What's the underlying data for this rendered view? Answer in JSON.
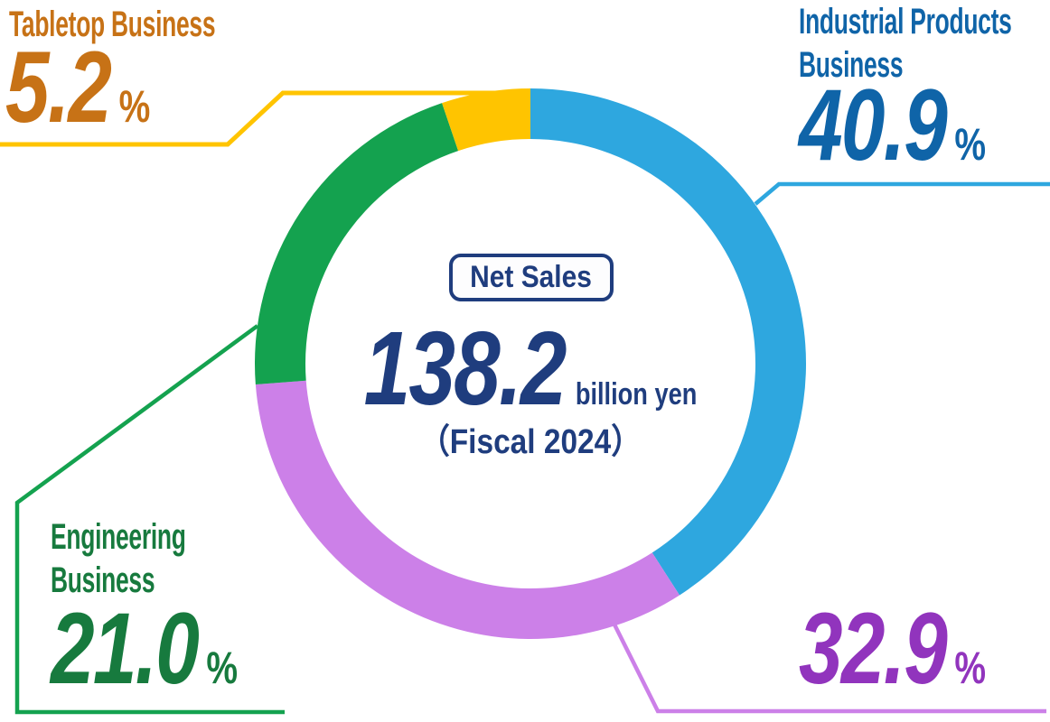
{
  "chart_data": {
    "type": "pie",
    "variant": "donut",
    "title": "Net Sales",
    "legend_position": "callouts",
    "percent_sign": "%",
    "center": {
      "badge_label": "Net Sales",
      "value": "138.2",
      "unit": "billion yen",
      "period": "（Fiscal 2024）",
      "text_color": "#1F3D7E",
      "badge_bg": "#FDFDFE",
      "badge_border_color": "#1F3D7E"
    },
    "categories": [
      "Industrial Products Business",
      "",
      "Engineering Business",
      "Tabletop Business"
    ],
    "values": [
      40.9,
      32.9,
      21.0,
      5.2
    ],
    "segments": [
      {
        "id": "industrial-products",
        "label": "Industrial Products Business",
        "label_lines": [
          "Industrial Products",
          "Business"
        ],
        "value": 40.9,
        "value_label": "40.9",
        "color": "#2EA7DF",
        "text_color": "#0F64A8"
      },
      {
        "id": "unlabeled",
        "label": "",
        "label_lines": [],
        "value": 32.9,
        "value_label": "32.9",
        "color": "#CC80E8",
        "text_color": "#9134BD"
      },
      {
        "id": "engineering",
        "label": "Engineering Business",
        "label_lines": [
          "Engineering",
          "Business"
        ],
        "value": 21.0,
        "value_label": "21.0",
        "color": "#14A24F",
        "text_color": "#177A3E"
      },
      {
        "id": "tabletop",
        "label": "Tabletop Business",
        "label_lines": [
          "Tabletop Business"
        ],
        "value": 5.2,
        "value_label": "5.2",
        "color": "#FFC400",
        "text_color": "#C77216"
      }
    ]
  }
}
